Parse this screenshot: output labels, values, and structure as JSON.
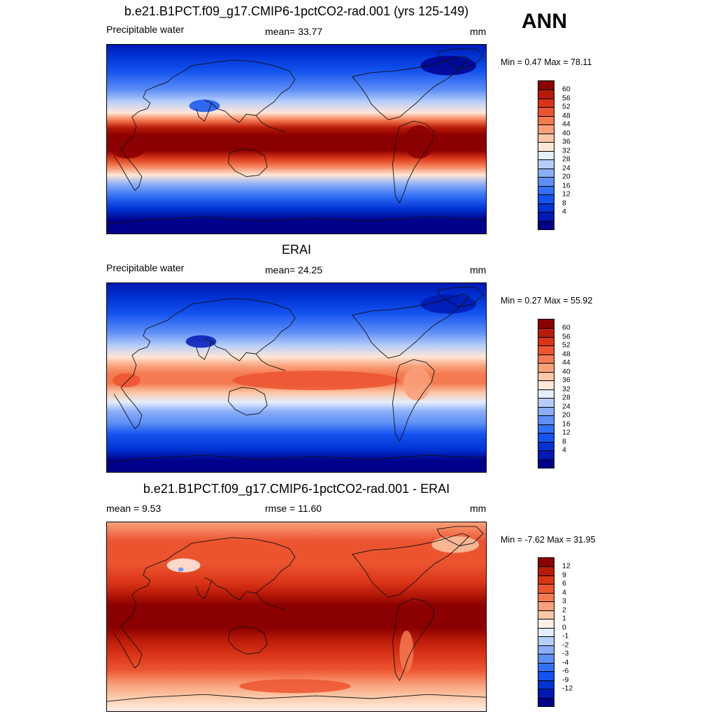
{
  "season": "ANN",
  "colors": {
    "ramp": [
      "#00008b",
      "#0019b4",
      "#0033d4",
      "#1453ef",
      "#3470f5",
      "#5e8ff7",
      "#8aaef9",
      "#b6cdfb",
      "#e4eefd",
      "#ffe7d6",
      "#fcc7a6",
      "#f9a079",
      "#f47a52",
      "#ec5430",
      "#d93417",
      "#b81a08",
      "#8b0000"
    ],
    "diff_ramp": [
      "#00008b",
      "#0019b4",
      "#0033d4",
      "#1453ef",
      "#3470f5",
      "#5e8ff7",
      "#8aaef9",
      "#b6cdfb",
      "#e4eefd",
      "#fff0e5",
      "#fcc7a6",
      "#f9a079",
      "#f47a52",
      "#ec5430",
      "#d93417",
      "#b81a08",
      "#8b0000"
    ]
  },
  "panels": [
    {
      "title": "b.e21.B1PCT.f09_g17.CMIP6-1pctCO2-rad.001 (yrs 125-149)",
      "left_label": "Precipitable water",
      "center_label": "mean=  33.77",
      "units": "mm",
      "minmax": "Min =   0.47 Max =  78.11",
      "levels": [
        "60",
        "56",
        "52",
        "48",
        "44",
        "40",
        "36",
        "32",
        "28",
        "24",
        "20",
        "16",
        "12",
        "8",
        "4"
      ],
      "profile": "model"
    },
    {
      "title": "ERAI",
      "left_label": "Precipitable water",
      "center_label": "mean=  24.25",
      "units": "mm",
      "minmax": "Min =   0.27 Max =  55.92",
      "levels": [
        "60",
        "56",
        "52",
        "48",
        "44",
        "40",
        "36",
        "32",
        "28",
        "24",
        "20",
        "16",
        "12",
        "8",
        "4"
      ],
      "profile": "obs"
    },
    {
      "title": "b.e21.B1PCT.f09_g17.CMIP6-1pctCO2-rad.001 - ERAI",
      "left_label": "mean =   9.53",
      "center_label": "rmse =  11.60",
      "units": "mm",
      "minmax": "Min =  -7.62 Max =  31.95",
      "levels": [
        "12",
        "9",
        "6",
        "4",
        "3",
        "2",
        "1",
        "0",
        "-1",
        "-2",
        "-3",
        "-4",
        "-6",
        "-9",
        "-12"
      ],
      "profile": "diff"
    }
  ]
}
